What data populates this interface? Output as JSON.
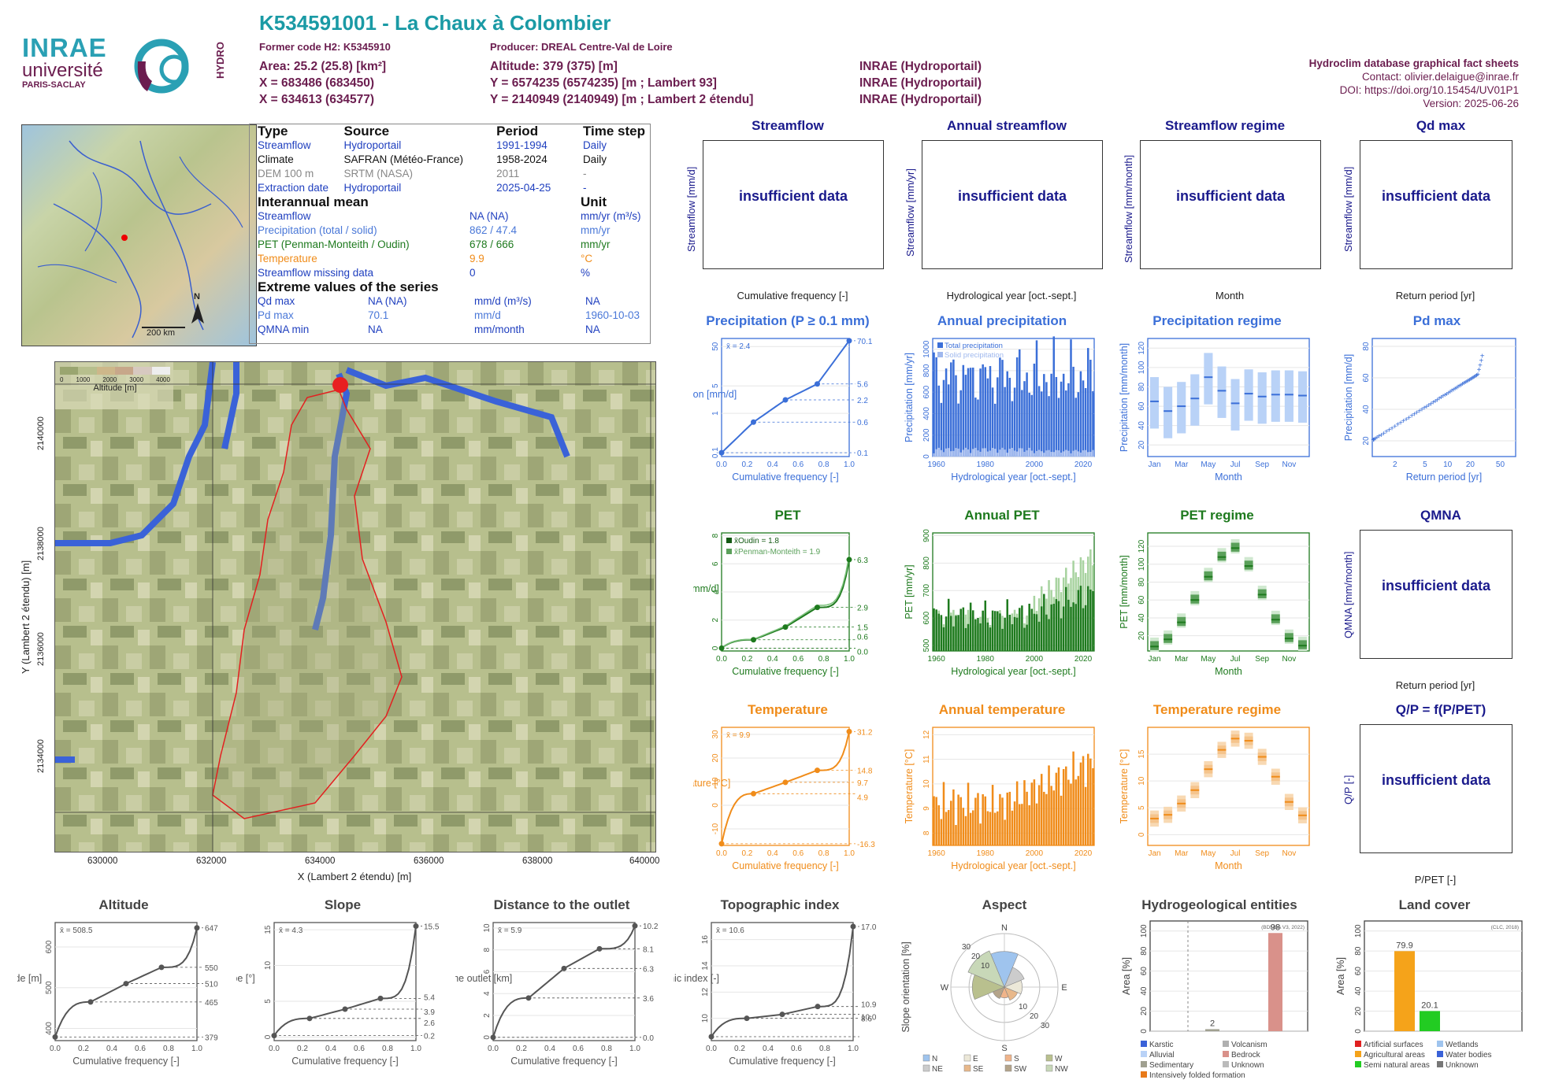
{
  "header": {
    "title": "K534591001 - La Chaux à Colombier",
    "former_code": "Former code H2: K5345910",
    "producer": "Producer: DREAL Centre-Val de Loire",
    "area": "Area: 25.2 (25.8) [km²]",
    "altitude": "Altitude: 379 (375) [m]",
    "x93": "X = 683486 (683450)",
    "y93": "Y = 6574235 (6574235) [m ; Lambert 93]",
    "x2e": "X = 634613 (634577)",
    "y2e": "Y = 2140949 (2140949) [m ; Lambert 2 étendu]",
    "src1": "INRAE (Hydroportail)",
    "src2": "INRAE (Hydroportail)",
    "src3": "INRAE (Hydroportail)",
    "db_title": "Hydroclim database graphical fact sheets",
    "contact": "Contact: olivier.delaigue@inrae.fr",
    "doi": "DOI: https://doi.org/10.15454/UV01P1",
    "version": "Version: 2025-06-26"
  },
  "logos": {
    "inrae": "INRAE",
    "universite": "université",
    "paris_saclay": "PARIS-SACLAY",
    "hydro": "HYDRO"
  },
  "minimap": {
    "north": "N",
    "scale": "200 km"
  },
  "info": {
    "col_type": "Type",
    "col_source": "Source",
    "col_period": "Period",
    "col_step": "Time step",
    "rows": [
      {
        "type": "Streamflow",
        "source": "Hydroportail",
        "period": "1991-1994",
        "step": "Daily",
        "color": "#1f3fbf"
      },
      {
        "type": "Climate",
        "source": "SAFRAN (Météo-France)",
        "period": "1958-2024",
        "step": "Daily",
        "color": "#111111"
      },
      {
        "type": "DEM 100 m",
        "source": "SRTM (NASA)",
        "period": "2011",
        "step": "-",
        "color": "#888888"
      },
      {
        "type": "Extraction date",
        "source": "Hydroportail",
        "period": "2025-04-25",
        "step": "-",
        "color": "#1f3fbf"
      }
    ],
    "mean_title": "Interannual mean",
    "unit_title": "Unit",
    "means": [
      {
        "name": "Streamflow",
        "value": "NA (NA)",
        "unit": "mm/yr (m³/s)",
        "color": "#1f3fbf"
      },
      {
        "name": "Precipitation (total / solid)",
        "value": "862 / 47.4",
        "unit": "mm/yr",
        "color": "#4a78d8"
      },
      {
        "name": "PET (Penman-Monteith / Oudin)",
        "value": "678 / 666",
        "unit": "mm/yr",
        "color": "#1e7a1e"
      },
      {
        "name": "Temperature",
        "value": "9.9",
        "unit": "°C",
        "color": "#f08c1a"
      },
      {
        "name": "Streamflow missing data",
        "value": "0",
        "unit": "%",
        "color": "#1f3fbf"
      }
    ],
    "extreme_title": "Extreme values of the series",
    "extremes": [
      {
        "name": "Qd max",
        "value": "NA (NA)",
        "unit": "mm/d (m³/s)",
        "date": "NA",
        "color": "#1f3fbf"
      },
      {
        "name": "Pd max",
        "value": "70.1",
        "unit": "mm/d",
        "date": "1960-10-03",
        "color": "#4a78d8"
      },
      {
        "name": "QMNA min",
        "value": "NA",
        "unit": "mm/month",
        "date": "NA",
        "color": "#1f3fbf"
      }
    ]
  },
  "map": {
    "legend_title": "Altitude [m]",
    "legend_ticks": [
      "0",
      "1000",
      "2000",
      "3000",
      "4000"
    ],
    "x_ticks": [
      "630000",
      "632000",
      "634000",
      "636000",
      "638000",
      "640000"
    ],
    "y_ticks": [
      "2134000",
      "2136000",
      "2138000",
      "2140000"
    ],
    "xlabel": "X (Lambert 2 étendu) [m]",
    "ylabel": "Y (Lambert 2 étendu) [m]"
  },
  "insufficient": "insufficient data",
  "streamflow": {
    "title": "Streamflow",
    "ylabel": "Streamflow [mm/d]",
    "xlabel": "Cumulative frequency [-]"
  },
  "annual_streamflow": {
    "title": "Annual streamflow",
    "ylabel": "Streamflow [mm/yr]",
    "xlabel": "Hydrological year [oct.-sept.]"
  },
  "streamflow_regime": {
    "title": "Streamflow regime",
    "ylabel": "Streamflow [mm/month]",
    "xlabel": "Month"
  },
  "qd_max": {
    "title": "Qd max",
    "ylabel": "Streamflow [mm/d]",
    "xlabel": "Return period [yr]"
  },
  "qmna": {
    "title": "QMNA",
    "ylabel": "QMNA [mm/month]",
    "xlabel": "Return period [yr]"
  },
  "qp": {
    "title": "Q/P = f(P/PET)",
    "ylabel": "Q/P [-]",
    "xlabel": "P/PET [-]"
  },
  "precip_cdf": {
    "title": "Precipitation (P ≥ 0.1 mm)",
    "ylabel": "Precipitation [mm/d]",
    "xlabel": "Cumulative frequency [-]",
    "mean": "x̄ = 2.4",
    "y_ticks": [
      "0.1",
      "1",
      "5",
      "50"
    ],
    "x_ticks": [
      "0.0",
      "0.2",
      "0.4",
      "0.6",
      "0.8",
      "1.0"
    ],
    "right_labels": [
      "70.1",
      "5.6",
      "2.2",
      "0.6",
      "0.1"
    ]
  },
  "annual_precip": {
    "title": "Annual precipitation",
    "ylabel": "Precipitation [mm/yr]",
    "xlabel": "Hydrological year [oct.-sept.]",
    "legend_total": "Total precipitation",
    "legend_solid": "Solid precipitation",
    "y_ticks": [
      "0",
      "200",
      "400",
      "600",
      "800",
      "1000"
    ],
    "x_ticks": [
      "1960",
      "1980",
      "2000",
      "2020"
    ]
  },
  "precip_regime": {
    "title": "Precipitation regime",
    "ylabel": "Precipitation [mm/month]",
    "xlabel": "Month",
    "y_ticks": [
      "20",
      "40",
      "60",
      "80",
      "100",
      "120"
    ],
    "x_ticks": [
      "Jan",
      "Mar",
      "May",
      "Jul",
      "Sep",
      "Nov"
    ]
  },
  "pd_max": {
    "title": "Pd max",
    "ylabel": "Precipitation [mm/d]",
    "xlabel": "Return period [yr]",
    "y_ticks": [
      "20",
      "40",
      "60",
      "80"
    ],
    "x_ticks": [
      "2",
      "5",
      "10",
      "20",
      "50"
    ]
  },
  "pet_cdf": {
    "title": "PET",
    "ylabel": "PET [mm/d]",
    "xlabel": "Cumulative frequency [-]",
    "mean1": "x̄Oudin = 1.8",
    "mean2": "x̄Penman-Monteith = 1.9",
    "y_ticks": [
      "0",
      "2",
      "4",
      "6",
      "8"
    ],
    "x_ticks": [
      "0.0",
      "0.2",
      "0.4",
      "0.6",
      "0.8",
      "1.0"
    ],
    "right_labels": [
      "6.3",
      "2.9",
      "1.5",
      "0.6",
      "0.0"
    ]
  },
  "annual_pet": {
    "title": "Annual PET",
    "ylabel": "PET [mm/yr]",
    "xlabel": "Hydrological year [oct.-sept.]",
    "y_ticks": [
      "500",
      "600",
      "700",
      "800",
      "900"
    ],
    "x_ticks": [
      "1960",
      "1980",
      "2000",
      "2020"
    ]
  },
  "pet_regime": {
    "title": "PET regime",
    "ylabel": "PET [mm/month]",
    "xlabel": "Month",
    "y_ticks": [
      "20",
      "40",
      "60",
      "80",
      "100",
      "120"
    ],
    "x_ticks": [
      "Jan",
      "Mar",
      "May",
      "Jul",
      "Sep",
      "Nov"
    ]
  },
  "temp_cdf": {
    "title": "Temperature",
    "ylabel": "Temperature [°C]",
    "xlabel": "Cumulative frequency [-]",
    "mean": "x̄ = 9.9",
    "y_ticks": [
      "-10",
      "0",
      "10",
      "20",
      "30"
    ],
    "x_ticks": [
      "0.0",
      "0.2",
      "0.4",
      "0.6",
      "0.8",
      "1.0"
    ],
    "right_labels": [
      "31.2",
      "14.8",
      "9.7",
      "4.9",
      "-16.3"
    ]
  },
  "annual_temp": {
    "title": "Annual temperature",
    "ylabel": "Temperature [°C]",
    "xlabel": "Hydrological year [oct.-sept.]",
    "y_ticks": [
      "8",
      "9",
      "10",
      "11",
      "12"
    ],
    "x_ticks": [
      "1960",
      "1980",
      "2000",
      "2020"
    ]
  },
  "temp_regime": {
    "title": "Temperature regime",
    "ylabel": "Temperature [°C]",
    "xlabel": "Month",
    "y_ticks": [
      "0",
      "5",
      "10",
      "15"
    ],
    "x_ticks": [
      "Jan",
      "Mar",
      "May",
      "Jul",
      "Sep",
      "Nov"
    ]
  },
  "altitude": {
    "title": "Altitude",
    "ylabel": "Altitude [m]",
    "xlabel": "Cumulative frequency [-]",
    "mean": "x̄ = 508.5",
    "y_ticks": [
      "400",
      "500",
      "600"
    ],
    "x_ticks": [
      "0.0",
      "0.2",
      "0.4",
      "0.6",
      "0.8",
      "1.0"
    ],
    "right_labels": [
      "647",
      "550",
      "510",
      "465",
      "379"
    ]
  },
  "slope": {
    "title": "Slope",
    "ylabel": "Slope [°]",
    "xlabel": "Cumulative frequency [-]",
    "mean": "x̄ = 4.3",
    "y_ticks": [
      "0",
      "5",
      "10",
      "15"
    ],
    "x_ticks": [
      "0.0",
      "0.2",
      "0.4",
      "0.6",
      "0.8",
      "1.0"
    ],
    "right_labels": [
      "15.5",
      "5.4",
      "3.9",
      "2.6",
      "0.2"
    ]
  },
  "distance": {
    "title": "Distance to the outlet",
    "ylabel": "Distance to the outlet [km]",
    "xlabel": "Cumulative frequency [-]",
    "mean": "x̄ = 5.9",
    "y_ticks": [
      "0",
      "2",
      "4",
      "6",
      "8",
      "10"
    ],
    "x_ticks": [
      "0.0",
      "0.2",
      "0.4",
      "0.6",
      "0.8",
      "1.0"
    ],
    "right_labels": [
      "10.2",
      "8.1",
      "6.3",
      "3.6",
      "0.0"
    ]
  },
  "topo": {
    "title": "Topographic index",
    "ylabel": "Topographic index [-]",
    "xlabel": "Cumulative frequency [-]",
    "mean": "x̄ = 10.6",
    "y_ticks": [
      "10",
      "12",
      "14",
      "16"
    ],
    "x_ticks": [
      "0.0",
      "0.2",
      "0.4",
      "0.6",
      "0.8",
      "1.0"
    ],
    "right_labels": [
      "17.0",
      "10.9",
      "10.0",
      "8.6"
    ]
  },
  "aspect": {
    "title": "Aspect",
    "ylabel": "Slope orientation [%]",
    "dirs": [
      "N",
      "E",
      "S",
      "W"
    ],
    "rings": [
      "10",
      "20",
      "30"
    ],
    "legend": [
      "N",
      "E",
      "S",
      "W",
      "NE",
      "SE",
      "SW",
      "NW"
    ]
  },
  "hydrogeo": {
    "title": "Hydrogeological entities",
    "ylabel": "Area [%]",
    "source": "(BDLISA V3, 2022)",
    "y_ticks": [
      "0",
      "20",
      "40",
      "60",
      "80",
      "100"
    ],
    "values": [
      "2",
      "98"
    ],
    "legend": [
      "Karstic",
      "Volcanism",
      "Alluvial",
      "Bedrock",
      "Sedimentary",
      "Unknown",
      "Intensively folded formation"
    ]
  },
  "landcover": {
    "title": "Land cover",
    "ylabel": "Area [%]",
    "source": "(CLC, 2018)",
    "y_ticks": [
      "0",
      "20",
      "40",
      "60",
      "80",
      "100"
    ],
    "values": [
      "79.9",
      "20.1"
    ],
    "legend": [
      "Artificial surfaces",
      "Wetlands",
      "Agricultural areas",
      "Water bodies",
      "Semi natural areas",
      "Unknown"
    ]
  },
  "chart_data": [
    {
      "type": "line",
      "title": "Precipitation (P ≥ 0.1 mm)",
      "x": [
        0,
        0.25,
        0.5,
        0.75,
        1.0
      ],
      "y": [
        0.1,
        0.6,
        2.2,
        5.6,
        70.1
      ]
    },
    {
      "type": "bar",
      "title": "Annual precipitation",
      "x_range": [
        1959,
        2024
      ],
      "ylim": [
        0,
        1100
      ]
    },
    {
      "type": "box",
      "title": "Precipitation regime",
      "categories": [
        "Jan",
        "Feb",
        "Mar",
        "Apr",
        "May",
        "Jun",
        "Jul",
        "Aug",
        "Sep",
        "Oct",
        "Nov",
        "Dec"
      ],
      "values": [
        65,
        55,
        60,
        68,
        90,
        76,
        63,
        73,
        70,
        72,
        72,
        71
      ]
    },
    {
      "type": "scatter",
      "title": "Pd max",
      "x": [
        1.05,
        1.5,
        2,
        3,
        5,
        10,
        20,
        30,
        50
      ],
      "y": [
        20,
        28,
        34,
        38,
        43,
        50,
        58,
        65,
        70.1
      ]
    },
    {
      "type": "line",
      "title": "PET",
      "x": [
        0,
        0.25,
        0.5,
        0.75,
        1.0
      ],
      "y": [
        0.0,
        0.6,
        1.5,
        2.9,
        6.3
      ]
    },
    {
      "type": "bar",
      "title": "Annual PET",
      "x_range": [
        1959,
        2024
      ],
      "ylim": [
        480,
        900
      ]
    },
    {
      "type": "box",
      "title": "PET regime",
      "categories": [
        "Jan",
        "Feb",
        "Mar",
        "Apr",
        "May",
        "Jun",
        "Jul",
        "Aug",
        "Sep",
        "Oct",
        "Nov",
        "Dec"
      ],
      "values": [
        8,
        16,
        35,
        60,
        86,
        108,
        118,
        98,
        66,
        38,
        17,
        9
      ]
    },
    {
      "type": "line",
      "title": "Temperature",
      "x": [
        0,
        0.25,
        0.5,
        0.75,
        1.0
      ],
      "y": [
        -16.3,
        4.9,
        9.7,
        14.8,
        31.2
      ]
    },
    {
      "type": "bar",
      "title": "Annual temperature",
      "x_range": [
        1959,
        2024
      ],
      "ylim": [
        7.5,
        12.3
      ]
    },
    {
      "type": "box",
      "title": "Temperature regime",
      "categories": [
        "Jan",
        "Feb",
        "Mar",
        "Apr",
        "May",
        "Jun",
        "Jul",
        "Aug",
        "Sep",
        "Oct",
        "Nov",
        "Dec"
      ],
      "values": [
        3,
        3.7,
        5.8,
        8.3,
        12.2,
        15.8,
        17.9,
        17.5,
        14.5,
        10.8,
        6.1,
        3.6
      ]
    },
    {
      "type": "line",
      "title": "Altitude",
      "x": [
        0,
        0.25,
        0.5,
        0.75,
        1.0
      ],
      "y": [
        379,
        465,
        510,
        550,
        647
      ]
    },
    {
      "type": "line",
      "title": "Slope",
      "x": [
        0,
        0.25,
        0.5,
        0.75,
        1.0
      ],
      "y": [
        0.2,
        2.6,
        3.9,
        5.4,
        15.5
      ]
    },
    {
      "type": "line",
      "title": "Distance to the outlet",
      "x": [
        0,
        0.25,
        0.5,
        0.75,
        1.0
      ],
      "y": [
        0.0,
        3.6,
        6.3,
        8.1,
        10.2
      ]
    },
    {
      "type": "line",
      "title": "Topographic index",
      "x": [
        0,
        0.25,
        0.5,
        0.75,
        1.0
      ],
      "y": [
        8.6,
        10.0,
        10.3,
        10.9,
        17.0
      ]
    },
    {
      "type": "bar",
      "title": "Hydrogeological entities",
      "categories": [
        "Sedimentary",
        "Bedrock"
      ],
      "values": [
        2,
        98
      ]
    },
    {
      "type": "bar",
      "title": "Land cover",
      "categories": [
        "Agricultural areas",
        "Semi natural areas"
      ],
      "values": [
        79.9,
        20.1
      ]
    }
  ]
}
